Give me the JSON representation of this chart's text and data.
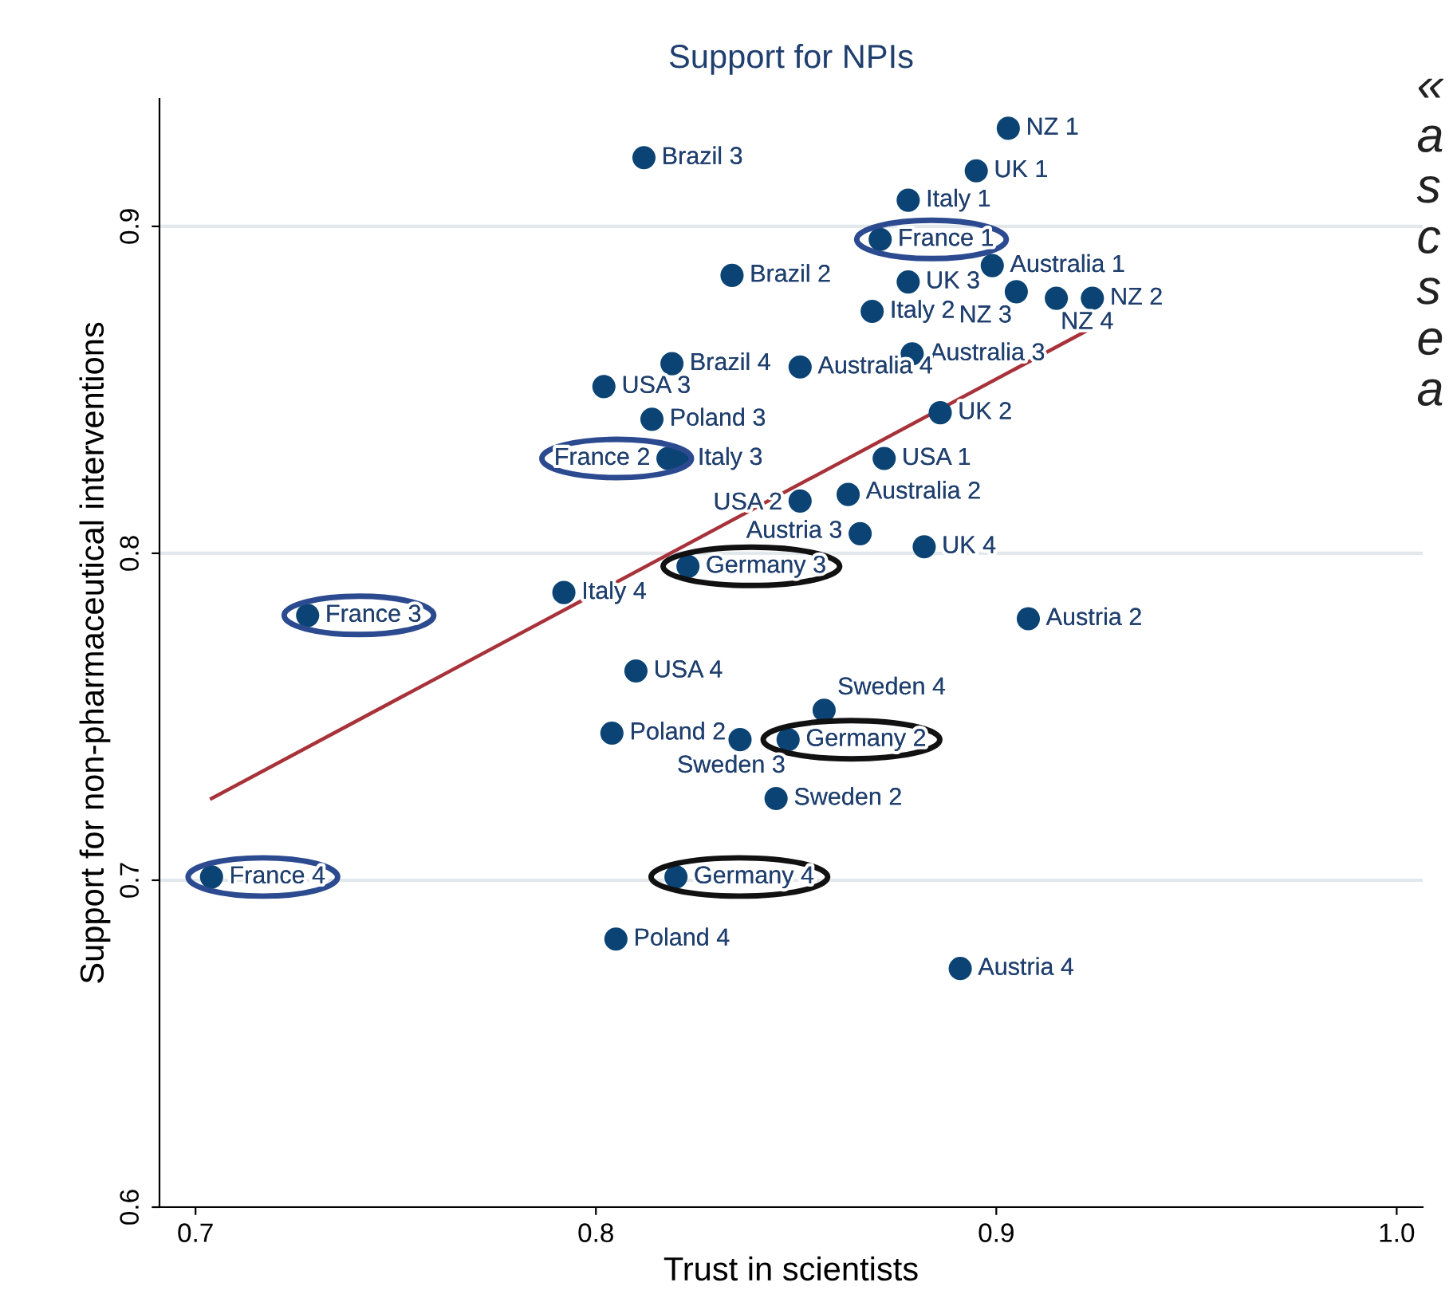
{
  "chart_data": {
    "type": "scatter",
    "title": "Support for NPIs",
    "xlabel": "Trust in scientists",
    "ylabel": "Support for non-pharmaceutical interventions",
    "xlim": [
      0.691,
      1.0065
    ],
    "ylim": [
      0.6,
      0.939
    ],
    "xticks": [
      {
        "value": 0.7,
        "label": "0.7"
      },
      {
        "value": 0.8,
        "label": "0.8"
      },
      {
        "value": 0.9,
        "label": "0.9"
      },
      {
        "value": 1.0,
        "label": "1.0"
      }
    ],
    "yticks": [
      {
        "value": 0.6,
        "label": "0.6"
      },
      {
        "value": 0.7,
        "label": "0.7"
      },
      {
        "value": 0.8,
        "label": "0.8"
      },
      {
        "value": 0.9,
        "label": "0.9"
      }
    ],
    "grid": "y",
    "series": [
      {
        "marker": "circle",
        "color": "#0b4474",
        "x": [
          0.903,
          0.895,
          0.878,
          0.871,
          0.899,
          0.878,
          0.905,
          0.915,
          0.924,
          0.869,
          0.834,
          0.812,
          0.879,
          0.851,
          0.819,
          0.802,
          0.814,
          0.818,
          0.821,
          0.886,
          0.872,
          0.863,
          0.851,
          0.866,
          0.882,
          0.823,
          0.792,
          0.728,
          0.908,
          0.81,
          0.804,
          0.836,
          0.848,
          0.857,
          0.845,
          0.82,
          0.704,
          0.805,
          0.891
        ],
        "values": [
          0.93,
          0.917,
          0.908,
          0.896,
          0.888,
          0.883,
          0.88,
          0.878,
          0.878,
          0.874,
          0.885,
          0.921,
          0.861,
          0.857,
          0.858,
          0.851,
          0.841,
          0.829,
          0.829,
          0.843,
          0.829,
          0.818,
          0.816,
          0.806,
          0.802,
          0.796,
          0.788,
          0.781,
          0.78,
          0.764,
          0.745,
          0.743,
          0.743,
          0.752,
          0.725,
          0.701,
          0.701,
          0.682,
          0.673
        ]
      },
      {
        "type": "line",
        "color": "#a8323a",
        "x": [
          0.704,
          0.924
        ],
        "values": [
          0.725,
          0.869
        ]
      }
    ],
    "annotations": [
      {
        "text": "NZ 1",
        "x": 0.903,
        "y": 0.93
      },
      {
        "text": "UK 1",
        "x": 0.895,
        "y": 0.917
      },
      {
        "text": "Italy 1",
        "x": 0.878,
        "y": 0.908
      },
      {
        "text": "France 1",
        "x": 0.871,
        "y": 0.896
      },
      {
        "text": "Australia 1",
        "x": 0.899,
        "y": 0.888
      },
      {
        "text": "UK 3",
        "x": 0.878,
        "y": 0.883
      },
      {
        "text": "NZ 3",
        "x": 0.905,
        "y": 0.88
      },
      {
        "text": "NZ 4",
        "x": 0.915,
        "y": 0.878
      },
      {
        "text": "NZ 2",
        "x": 0.924,
        "y": 0.878
      },
      {
        "text": "Italy 2",
        "x": 0.869,
        "y": 0.874
      },
      {
        "text": "Brazil 2",
        "x": 0.834,
        "y": 0.885
      },
      {
        "text": "Brazil 3",
        "x": 0.812,
        "y": 0.921
      },
      {
        "text": "Australia 3",
        "x": 0.879,
        "y": 0.861
      },
      {
        "text": "Australia 4",
        "x": 0.851,
        "y": 0.857
      },
      {
        "text": "Brazil 4",
        "x": 0.819,
        "y": 0.858
      },
      {
        "text": "USA 3",
        "x": 0.802,
        "y": 0.851
      },
      {
        "text": "Poland 3",
        "x": 0.814,
        "y": 0.841
      },
      {
        "text": "France 2",
        "x": 0.818,
        "y": 0.829
      },
      {
        "text": "Italy 3",
        "x": 0.821,
        "y": 0.829
      },
      {
        "text": "UK 2",
        "x": 0.886,
        "y": 0.843
      },
      {
        "text": "USA 1",
        "x": 0.872,
        "y": 0.829
      },
      {
        "text": "Australia 2",
        "x": 0.863,
        "y": 0.818
      },
      {
        "text": "USA 2",
        "x": 0.851,
        "y": 0.816
      },
      {
        "text": "Austria 3",
        "x": 0.866,
        "y": 0.806
      },
      {
        "text": "UK 4",
        "x": 0.882,
        "y": 0.802
      },
      {
        "text": "Germany 3",
        "x": 0.823,
        "y": 0.796
      },
      {
        "text": "Italy 4",
        "x": 0.792,
        "y": 0.788
      },
      {
        "text": "France 3",
        "x": 0.728,
        "y": 0.781
      },
      {
        "text": "Austria 2",
        "x": 0.908,
        "y": 0.78
      },
      {
        "text": "USA 4",
        "x": 0.81,
        "y": 0.764
      },
      {
        "text": "Poland 2",
        "x": 0.804,
        "y": 0.745
      },
      {
        "text": "Sweden 3",
        "x": 0.836,
        "y": 0.743
      },
      {
        "text": "Germany 2",
        "x": 0.848,
        "y": 0.743
      },
      {
        "text": "Sweden 4",
        "x": 0.857,
        "y": 0.752
      },
      {
        "text": "Sweden 2",
        "x": 0.845,
        "y": 0.725
      },
      {
        "text": "Germany 4",
        "x": 0.82,
        "y": 0.701
      },
      {
        "text": "France 4",
        "x": 0.704,
        "y": 0.701
      },
      {
        "text": "Poland 4",
        "x": 0.805,
        "y": 0.682
      },
      {
        "text": "Austria 4",
        "x": 0.891,
        "y": 0.673
      },
      "«\na\ns\nc\ns\ne\na"
    ]
  }
}
